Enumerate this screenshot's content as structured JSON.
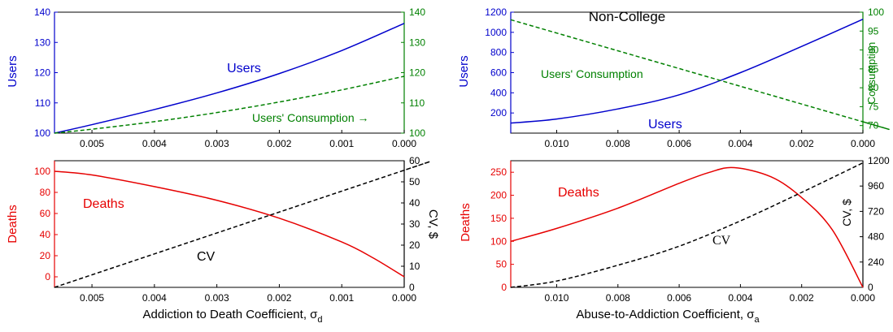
{
  "chart_data": [
    {
      "id": "left-top",
      "type": "line",
      "xlabel": "",
      "xlim": [
        0.0056,
        0.0
      ],
      "xticks": [
        "0.005",
        "0.004",
        "0.003",
        "0.002",
        "0.001",
        "0.000"
      ],
      "y_left": {
        "label": "Users",
        "lim": [
          100,
          140
        ],
        "ticks": [
          "100",
          "110",
          "120",
          "130",
          "140"
        ],
        "color": "#0000cc"
      },
      "y_right": {
        "label": "",
        "lim": [
          100,
          140
        ],
        "ticks": [
          "100",
          "110",
          "120",
          "130",
          "140"
        ],
        "color": "#008000"
      },
      "series": [
        {
          "axis": "left",
          "style": "solid",
          "color": "#0000cc",
          "x": [
            0.0056,
            0.005,
            0.004,
            0.003,
            0.002,
            0.001,
            0.0
          ],
          "y": [
            100.0,
            102.8,
            107.8,
            113.3,
            119.7,
            127.3,
            136.3
          ]
        },
        {
          "axis": "right",
          "style": "dashed",
          "color": "#008000",
          "x": [
            0.0056,
            0.005,
            0.004,
            0.003,
            0.002,
            0.001,
            0.0
          ],
          "y": [
            100.0,
            101.3,
            103.8,
            106.8,
            110.3,
            114.3,
            118.8
          ]
        }
      ],
      "annotations": [
        {
          "text": "Users",
          "color": "#0000cc"
        },
        {
          "text": "Users' Consumption →",
          "color": "#008000"
        }
      ]
    },
    {
      "id": "left-bottom",
      "type": "line",
      "xlabel_main": "Addiction to Death Coefficient, σ",
      "xlabel_sub": "d",
      "xlim": [
        0.0056,
        0.0
      ],
      "xticks": [
        "0.005",
        "0.004",
        "0.003",
        "0.002",
        "0.001",
        "0.000"
      ],
      "y_left": {
        "label": "Deaths",
        "lim": [
          -10,
          110
        ],
        "ticks": [
          "0",
          "20",
          "40",
          "60",
          "80",
          "100"
        ],
        "color": "#e60000"
      },
      "y_right": {
        "label": "CV, $",
        "lim": [
          0,
          60
        ],
        "ticks": [
          "0",
          "10",
          "20",
          "30",
          "40",
          "50",
          "60"
        ],
        "color": "#000000"
      },
      "series": [
        {
          "axis": "left",
          "style": "solid",
          "color": "#e60000",
          "x": [
            0.0056,
            0.005,
            0.004,
            0.003,
            0.002,
            0.001,
            0.0005,
            0.0
          ],
          "y": [
            100.0,
            96.5,
            85.5,
            72.5,
            55.5,
            33.0,
            18.0,
            0.0
          ]
        },
        {
          "axis": "right",
          "style": "dashed",
          "color": "#000000",
          "x": [
            0.0056,
            0.0,
            0.0
          ],
          "y": [
            0.0,
            55.5,
            55.5
          ]
        }
      ],
      "annotations": [
        {
          "text": "Deaths",
          "color": "#e60000"
        },
        {
          "text": "CV",
          "color": "#000000"
        }
      ]
    },
    {
      "id": "right-top",
      "type": "line",
      "title": "Non-College",
      "xlim": [
        0.0115,
        0.0
      ],
      "xticks": [
        "0.010",
        "0.008",
        "0.006",
        "0.004",
        "0.002",
        "0.000"
      ],
      "y_left": {
        "label": "Users",
        "lim": [
          0,
          1200
        ],
        "ticks": [
          "200",
          "400",
          "600",
          "800",
          "1000",
          "1200"
        ],
        "color": "#0000cc"
      },
      "y_right": {
        "label": "Consumption",
        "lim": [
          68,
          100
        ],
        "ticks": [
          "70",
          "75",
          "80",
          "85",
          "90",
          "95",
          "100"
        ],
        "color": "#008000"
      },
      "series": [
        {
          "axis": "left",
          "style": "solid",
          "color": "#0000cc",
          "x": [
            0.0115,
            0.01,
            0.008,
            0.006,
            0.004,
            0.002,
            0.0
          ],
          "y": [
            100,
            140,
            240,
            380,
            600,
            860,
            1130
          ]
        },
        {
          "axis": "right",
          "style": "dashed",
          "color": "#008000",
          "x": [
            0.0115,
            0.0,
            0.0
          ],
          "y": [
            98.0,
            71.0,
            71.0
          ]
        }
      ],
      "annotations": [
        {
          "text": "Users' Consumption",
          "color": "#008000"
        },
        {
          "text": "Users",
          "color": "#0000cc"
        }
      ]
    },
    {
      "id": "right-bottom",
      "type": "line",
      "xlabel_main": "Abuse-to-Addiction Coefficient, σ",
      "xlabel_sub": "a",
      "xlim": [
        0.0115,
        0.0
      ],
      "xticks": [
        "0.010",
        "0.008",
        "0.006",
        "0.004",
        "0.002",
        "0.000"
      ],
      "y_left": {
        "label": "Deaths",
        "lim": [
          0,
          275
        ],
        "ticks": [
          "0",
          "50",
          "100",
          "150",
          "200",
          "250"
        ],
        "color": "#e60000"
      },
      "y_right": {
        "label": "CV, $",
        "lim": [
          0,
          1200
        ],
        "ticks": [
          "0",
          "240",
          "480",
          "720",
          "960",
          "1200"
        ],
        "color": "#000000"
      },
      "series": [
        {
          "axis": "left",
          "style": "solid",
          "color": "#e60000",
          "x": [
            0.0115,
            0.01,
            0.008,
            0.006,
            0.005,
            0.0042,
            0.003,
            0.002,
            0.001,
            0.0
          ],
          "y": [
            100,
            128,
            172,
            226,
            250,
            260,
            240,
            195,
            125,
            0
          ]
        },
        {
          "axis": "right",
          "style": "dashed",
          "color": "#000000",
          "x": [
            0.0115,
            0.01,
            0.008,
            0.006,
            0.004,
            0.002,
            0.0
          ],
          "y": [
            0,
            60,
            210,
            390,
            630,
            900,
            1180
          ]
        }
      ],
      "annotations": [
        {
          "text": "Deaths",
          "color": "#e60000"
        },
        {
          "text": "CV",
          "color": "#000000"
        }
      ]
    }
  ]
}
